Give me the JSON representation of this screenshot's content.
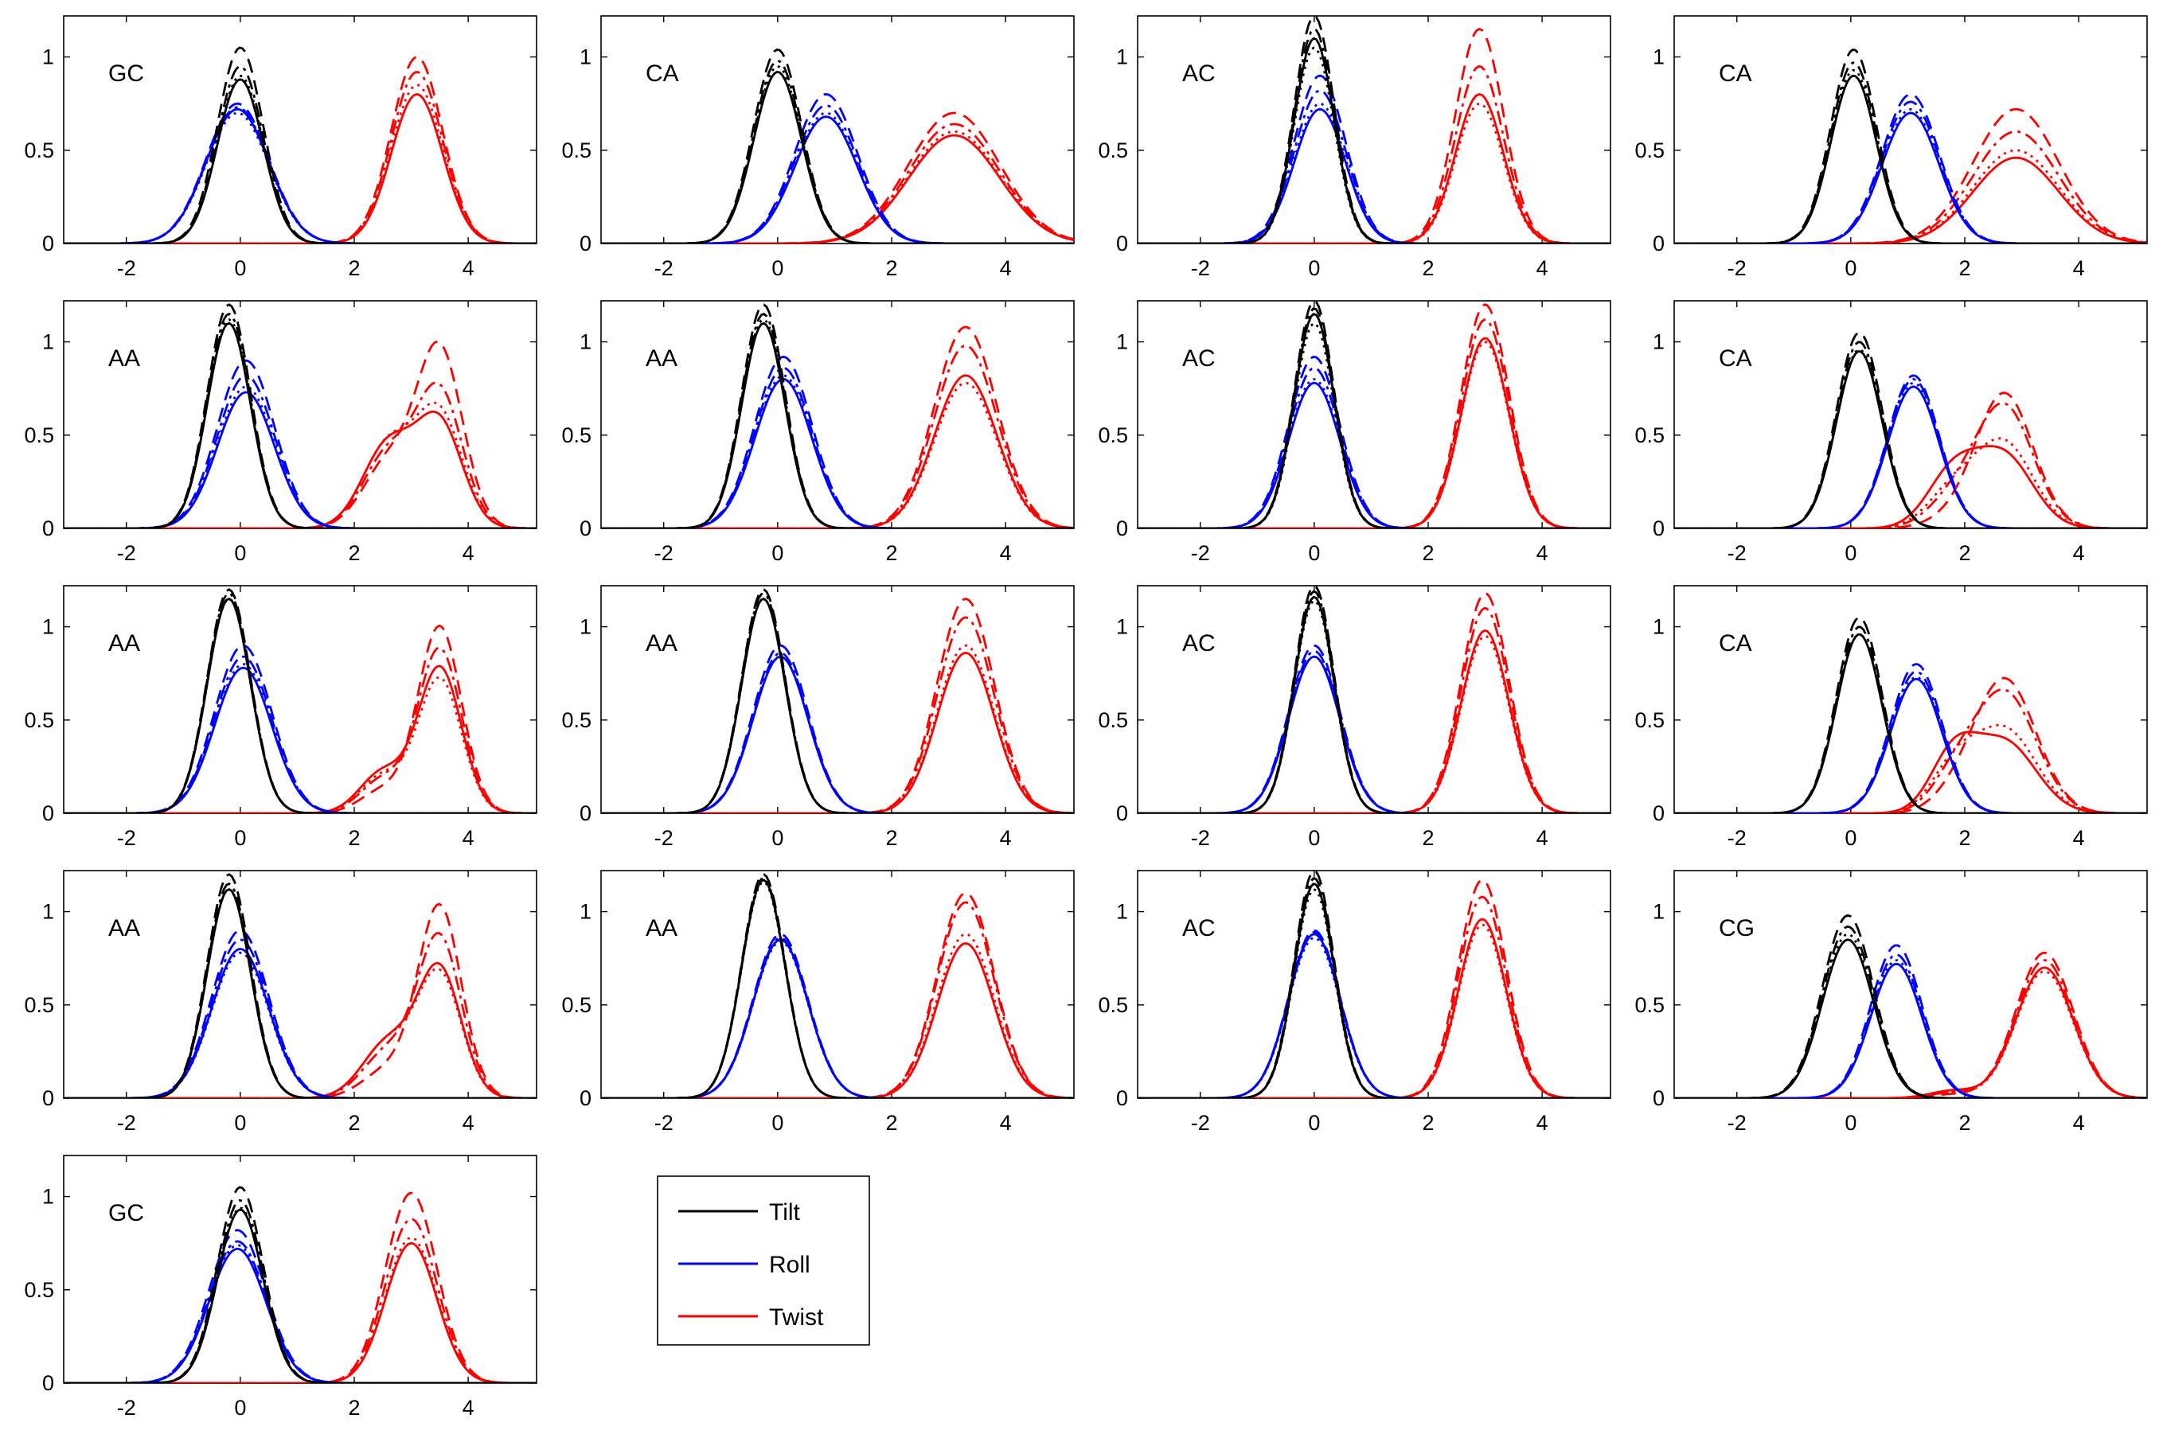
{
  "chart_data": {
    "type": "line",
    "layout": "5 rows x 4 columns, 17 panels",
    "xlim": [
      -3.1,
      5.2
    ],
    "ylim": [
      0,
      1.22
    ],
    "xticks": [
      -2,
      0,
      2,
      4
    ],
    "xtick_labels": [
      "-2",
      "0",
      "2",
      "4"
    ],
    "yticks": [
      0,
      0.5,
      1
    ],
    "ytick_labels": [
      "0",
      "0.5",
      "1"
    ],
    "grid": false,
    "line_styles": [
      "solid",
      "dashed",
      "dashdot",
      "dotted"
    ],
    "legend": {
      "placement": "row 5, column 2",
      "entries": [
        {
          "label": "Tilt",
          "color": "#000000"
        },
        {
          "label": "Roll",
          "color": "#0000ff"
        },
        {
          "label": "Twist",
          "color": "#ff0000"
        }
      ]
    },
    "panels": [
      {
        "label": "GC",
        "row": 0,
        "col": 0,
        "series": {
          "Tilt": [
            {
              "mu": 0,
              "s": 0.4,
              "peak": [
                0.88,
                1.05,
                0.95,
                0.9
              ]
            }
          ],
          "Roll": [
            {
              "mu": -0.05,
              "s": 0.55,
              "peak": [
                0.72,
                0.75,
                0.73,
                0.7
              ]
            }
          ],
          "Twist": [
            {
              "mu": 3.1,
              "s": 0.45,
              "peak": [
                0.8,
                1.0,
                0.92,
                0.85
              ]
            }
          ]
        }
      },
      {
        "label": "CA",
        "row": 0,
        "col": 1,
        "series": {
          "Tilt": [
            {
              "mu": 0,
              "s": 0.42,
              "peak": [
                0.92,
                1.04,
                0.98,
                0.95
              ]
            }
          ],
          "Roll": [
            {
              "mu": 0.85,
              "s": 0.55,
              "peak": [
                0.68,
                0.8,
                0.74,
                0.7
              ]
            }
          ],
          "Twist": [
            {
              "mu": 3.1,
              "s": 0.8,
              "peak": [
                0.58,
                0.7,
                0.64,
                0.6
              ]
            }
          ]
        }
      },
      {
        "label": "AC",
        "row": 0,
        "col": 2,
        "series": {
          "Tilt": [
            {
              "mu": 0,
              "s": 0.35,
              "peak": [
                1.1,
                1.22,
                1.15,
                1.05
              ]
            }
          ],
          "Roll": [
            {
              "mu": 0.1,
              "s": 0.45,
              "peak": [
                0.72,
                0.9,
                0.82,
                0.75
              ]
            }
          ],
          "Twist": [
            {
              "mu": 2.9,
              "s": 0.42,
              "peak": [
                0.8,
                1.15,
                0.95,
                0.75
              ]
            }
          ]
        }
      },
      {
        "label": "CA",
        "row": 0,
        "col": 3,
        "series": {
          "Tilt": [
            {
              "mu": 0.05,
              "s": 0.4,
              "peak": [
                0.9,
                1.04,
                0.97,
                0.93
              ]
            }
          ],
          "Roll": [
            {
              "mu": 1.05,
              "s": 0.5,
              "peak": [
                0.7,
                0.8,
                0.76,
                0.72
              ]
            }
          ],
          "Twist": [
            {
              "mu": 2.9,
              "s": 0.75,
              "peak": [
                0.46,
                0.72,
                0.6,
                0.5
              ]
            }
          ]
        }
      },
      {
        "label": "AA",
        "row": 1,
        "col": 0,
        "series": {
          "Tilt": [
            {
              "mu": -0.2,
              "s": 0.38,
              "peak": [
                1.1,
                1.2,
                1.15,
                1.12
              ]
            }
          ],
          "Roll": [
            {
              "mu": 0.1,
              "s": 0.5,
              "peak": [
                0.73,
                0.9,
                0.82,
                0.76
              ]
            }
          ],
          "Twist": [
            {
              "mu": 2.6,
              "s": 0.45,
              "peak": [
                0.45,
                0.35,
                0.4,
                0.45
              ]
            },
            {
              "mu": 3.5,
              "s": 0.4,
              "peak": [
                0.55,
                0.95,
                0.72,
                0.6
              ]
            }
          ]
        }
      },
      {
        "label": "AA",
        "row": 1,
        "col": 1,
        "series": {
          "Tilt": [
            {
              "mu": -0.25,
              "s": 0.38,
              "peak": [
                1.1,
                1.2,
                1.15,
                1.12
              ]
            }
          ],
          "Roll": [
            {
              "mu": 0.1,
              "s": 0.5,
              "peak": [
                0.8,
                0.92,
                0.86,
                0.82
              ]
            }
          ],
          "Twist": [
            {
              "mu": 3.3,
              "s": 0.55,
              "peak": [
                0.82,
                1.08,
                0.98,
                0.78
              ]
            }
          ]
        }
      },
      {
        "label": "AC",
        "row": 1,
        "col": 2,
        "series": {
          "Tilt": [
            {
              "mu": 0,
              "s": 0.35,
              "peak": [
                1.15,
                1.22,
                1.18,
                1.1
              ]
            }
          ],
          "Roll": [
            {
              "mu": 0,
              "s": 0.45,
              "peak": [
                0.78,
                0.92,
                0.86,
                0.8
              ]
            }
          ],
          "Twist": [
            {
              "mu": 3.0,
              "s": 0.42,
              "peak": [
                1.02,
                1.2,
                1.12,
                1.0
              ]
            }
          ]
        }
      },
      {
        "label": "CA",
        "row": 1,
        "col": 3,
        "series": {
          "Tilt": [
            {
              "mu": 0.15,
              "s": 0.4,
              "peak": [
                0.95,
                1.05,
                1.0,
                0.96
              ]
            }
          ],
          "Roll": [
            {
              "mu": 1.1,
              "s": 0.45,
              "peak": [
                0.76,
                0.82,
                0.8,
                0.78
              ]
            }
          ],
          "Twist": [
            {
              "mu": 1.8,
              "s": 0.45,
              "peak": [
                0.3,
                0.05,
                0.15,
                0.2
              ]
            },
            {
              "mu": 2.7,
              "s": 0.5,
              "peak": [
                0.38,
                0.72,
                0.65,
                0.45
              ]
            }
          ]
        }
      },
      {
        "label": "AA",
        "row": 2,
        "col": 0,
        "series": {
          "Tilt": [
            {
              "mu": -0.2,
              "s": 0.38,
              "peak": [
                1.15,
                1.2,
                1.18,
                1.15
              ]
            }
          ],
          "Roll": [
            {
              "mu": 0.05,
              "s": 0.5,
              "peak": [
                0.78,
                0.9,
                0.84,
                0.8
              ]
            }
          ],
          "Twist": [
            {
              "mu": 2.5,
              "s": 0.4,
              "peak": [
                0.22,
                0.12,
                0.18,
                0.2
              ]
            },
            {
              "mu": 3.5,
              "s": 0.38,
              "peak": [
                0.78,
                1.0,
                0.88,
                0.72
              ]
            }
          ]
        }
      },
      {
        "label": "AA",
        "row": 2,
        "col": 1,
        "series": {
          "Tilt": [
            {
              "mu": -0.25,
              "s": 0.38,
              "peak": [
                1.15,
                1.2,
                1.18,
                1.15
              ]
            }
          ],
          "Roll": [
            {
              "mu": 0.05,
              "s": 0.48,
              "peak": [
                0.84,
                0.9,
                0.86,
                0.84
              ]
            }
          ],
          "Twist": [
            {
              "mu": 3.3,
              "s": 0.5,
              "peak": [
                0.86,
                1.15,
                1.05,
                0.9
              ]
            }
          ]
        }
      },
      {
        "label": "AC",
        "row": 2,
        "col": 2,
        "series": {
          "Tilt": [
            {
              "mu": 0,
              "s": 0.35,
              "peak": [
                1.16,
                1.22,
                1.19,
                1.14
              ]
            }
          ],
          "Roll": [
            {
              "mu": 0,
              "s": 0.45,
              "peak": [
                0.84,
                0.9,
                0.87,
                0.84
              ]
            }
          ],
          "Twist": [
            {
              "mu": 3.0,
              "s": 0.42,
              "peak": [
                0.98,
                1.18,
                1.1,
                0.95
              ]
            }
          ]
        }
      },
      {
        "label": "CA",
        "row": 2,
        "col": 3,
        "series": {
          "Tilt": [
            {
              "mu": 0.15,
              "s": 0.4,
              "peak": [
                0.96,
                1.05,
                1.0,
                0.96
              ]
            }
          ],
          "Roll": [
            {
              "mu": 1.15,
              "s": 0.45,
              "peak": [
                0.72,
                0.8,
                0.76,
                0.73
              ]
            }
          ],
          "Twist": [
            {
              "mu": 1.8,
              "s": 0.4,
              "peak": [
                0.3,
                0.06,
                0.16,
                0.22
              ]
            },
            {
              "mu": 2.7,
              "s": 0.55,
              "peak": [
                0.38,
                0.72,
                0.65,
                0.45
              ]
            }
          ]
        }
      },
      {
        "label": "AA",
        "row": 3,
        "col": 0,
        "series": {
          "Tilt": [
            {
              "mu": -0.2,
              "s": 0.38,
              "peak": [
                1.12,
                1.2,
                1.15,
                1.12
              ]
            }
          ],
          "Roll": [
            {
              "mu": 0,
              "s": 0.5,
              "peak": [
                0.8,
                0.9,
                0.85,
                0.78
              ]
            }
          ],
          "Twist": [
            {
              "mu": 2.6,
              "s": 0.45,
              "peak": [
                0.3,
                0.15,
                0.25,
                0.3
              ]
            },
            {
              "mu": 3.5,
              "s": 0.38,
              "peak": [
                0.68,
                1.02,
                0.85,
                0.65
              ]
            }
          ]
        }
      },
      {
        "label": "AA",
        "row": 3,
        "col": 1,
        "series": {
          "Tilt": [
            {
              "mu": -0.25,
              "s": 0.38,
              "peak": [
                1.17,
                1.2,
                1.18,
                1.16
              ]
            }
          ],
          "Roll": [
            {
              "mu": 0.05,
              "s": 0.48,
              "peak": [
                0.85,
                0.88,
                0.86,
                0.84
              ]
            }
          ],
          "Twist": [
            {
              "mu": 3.3,
              "s": 0.5,
              "peak": [
                0.83,
                1.1,
                1.05,
                0.88
              ]
            }
          ]
        }
      },
      {
        "label": "AC",
        "row": 3,
        "col": 2,
        "series": {
          "Tilt": [
            {
              "mu": 0,
              "s": 0.35,
              "peak": [
                1.15,
                1.22,
                1.18,
                1.12
              ]
            }
          ],
          "Roll": [
            {
              "mu": 0,
              "s": 0.45,
              "peak": [
                0.88,
                0.9,
                0.89,
                0.86
              ]
            }
          ],
          "Twist": [
            {
              "mu": 2.95,
              "s": 0.42,
              "peak": [
                0.96,
                1.17,
                1.08,
                0.93
              ]
            }
          ]
        }
      },
      {
        "label": "CG",
        "row": 3,
        "col": 3,
        "series": {
          "Tilt": [
            {
              "mu": -0.05,
              "s": 0.45,
              "peak": [
                0.85,
                0.98,
                0.92,
                0.88
              ]
            }
          ],
          "Roll": [
            {
              "mu": 0.8,
              "s": 0.45,
              "peak": [
                0.72,
                0.82,
                0.77,
                0.74
              ]
            }
          ],
          "Twist": [
            {
              "mu": 1.8,
              "s": 0.4,
              "peak": [
                0.04,
                0.02,
                0.03,
                0.03
              ]
            },
            {
              "mu": 3.4,
              "s": 0.5,
              "peak": [
                0.7,
                0.78,
                0.74,
                0.68
              ]
            }
          ]
        }
      },
      {
        "label": "GC",
        "row": 4,
        "col": 0,
        "series": {
          "Tilt": [
            {
              "mu": 0,
              "s": 0.4,
              "peak": [
                0.93,
                1.05,
                0.98,
                0.94
              ]
            }
          ],
          "Roll": [
            {
              "mu": -0.05,
              "s": 0.5,
              "peak": [
                0.72,
                0.82,
                0.76,
                0.74
              ]
            }
          ],
          "Twist": [
            {
              "mu": 3.0,
              "s": 0.45,
              "peak": [
                0.75,
                1.02,
                0.88,
                0.78
              ]
            }
          ]
        }
      }
    ]
  }
}
